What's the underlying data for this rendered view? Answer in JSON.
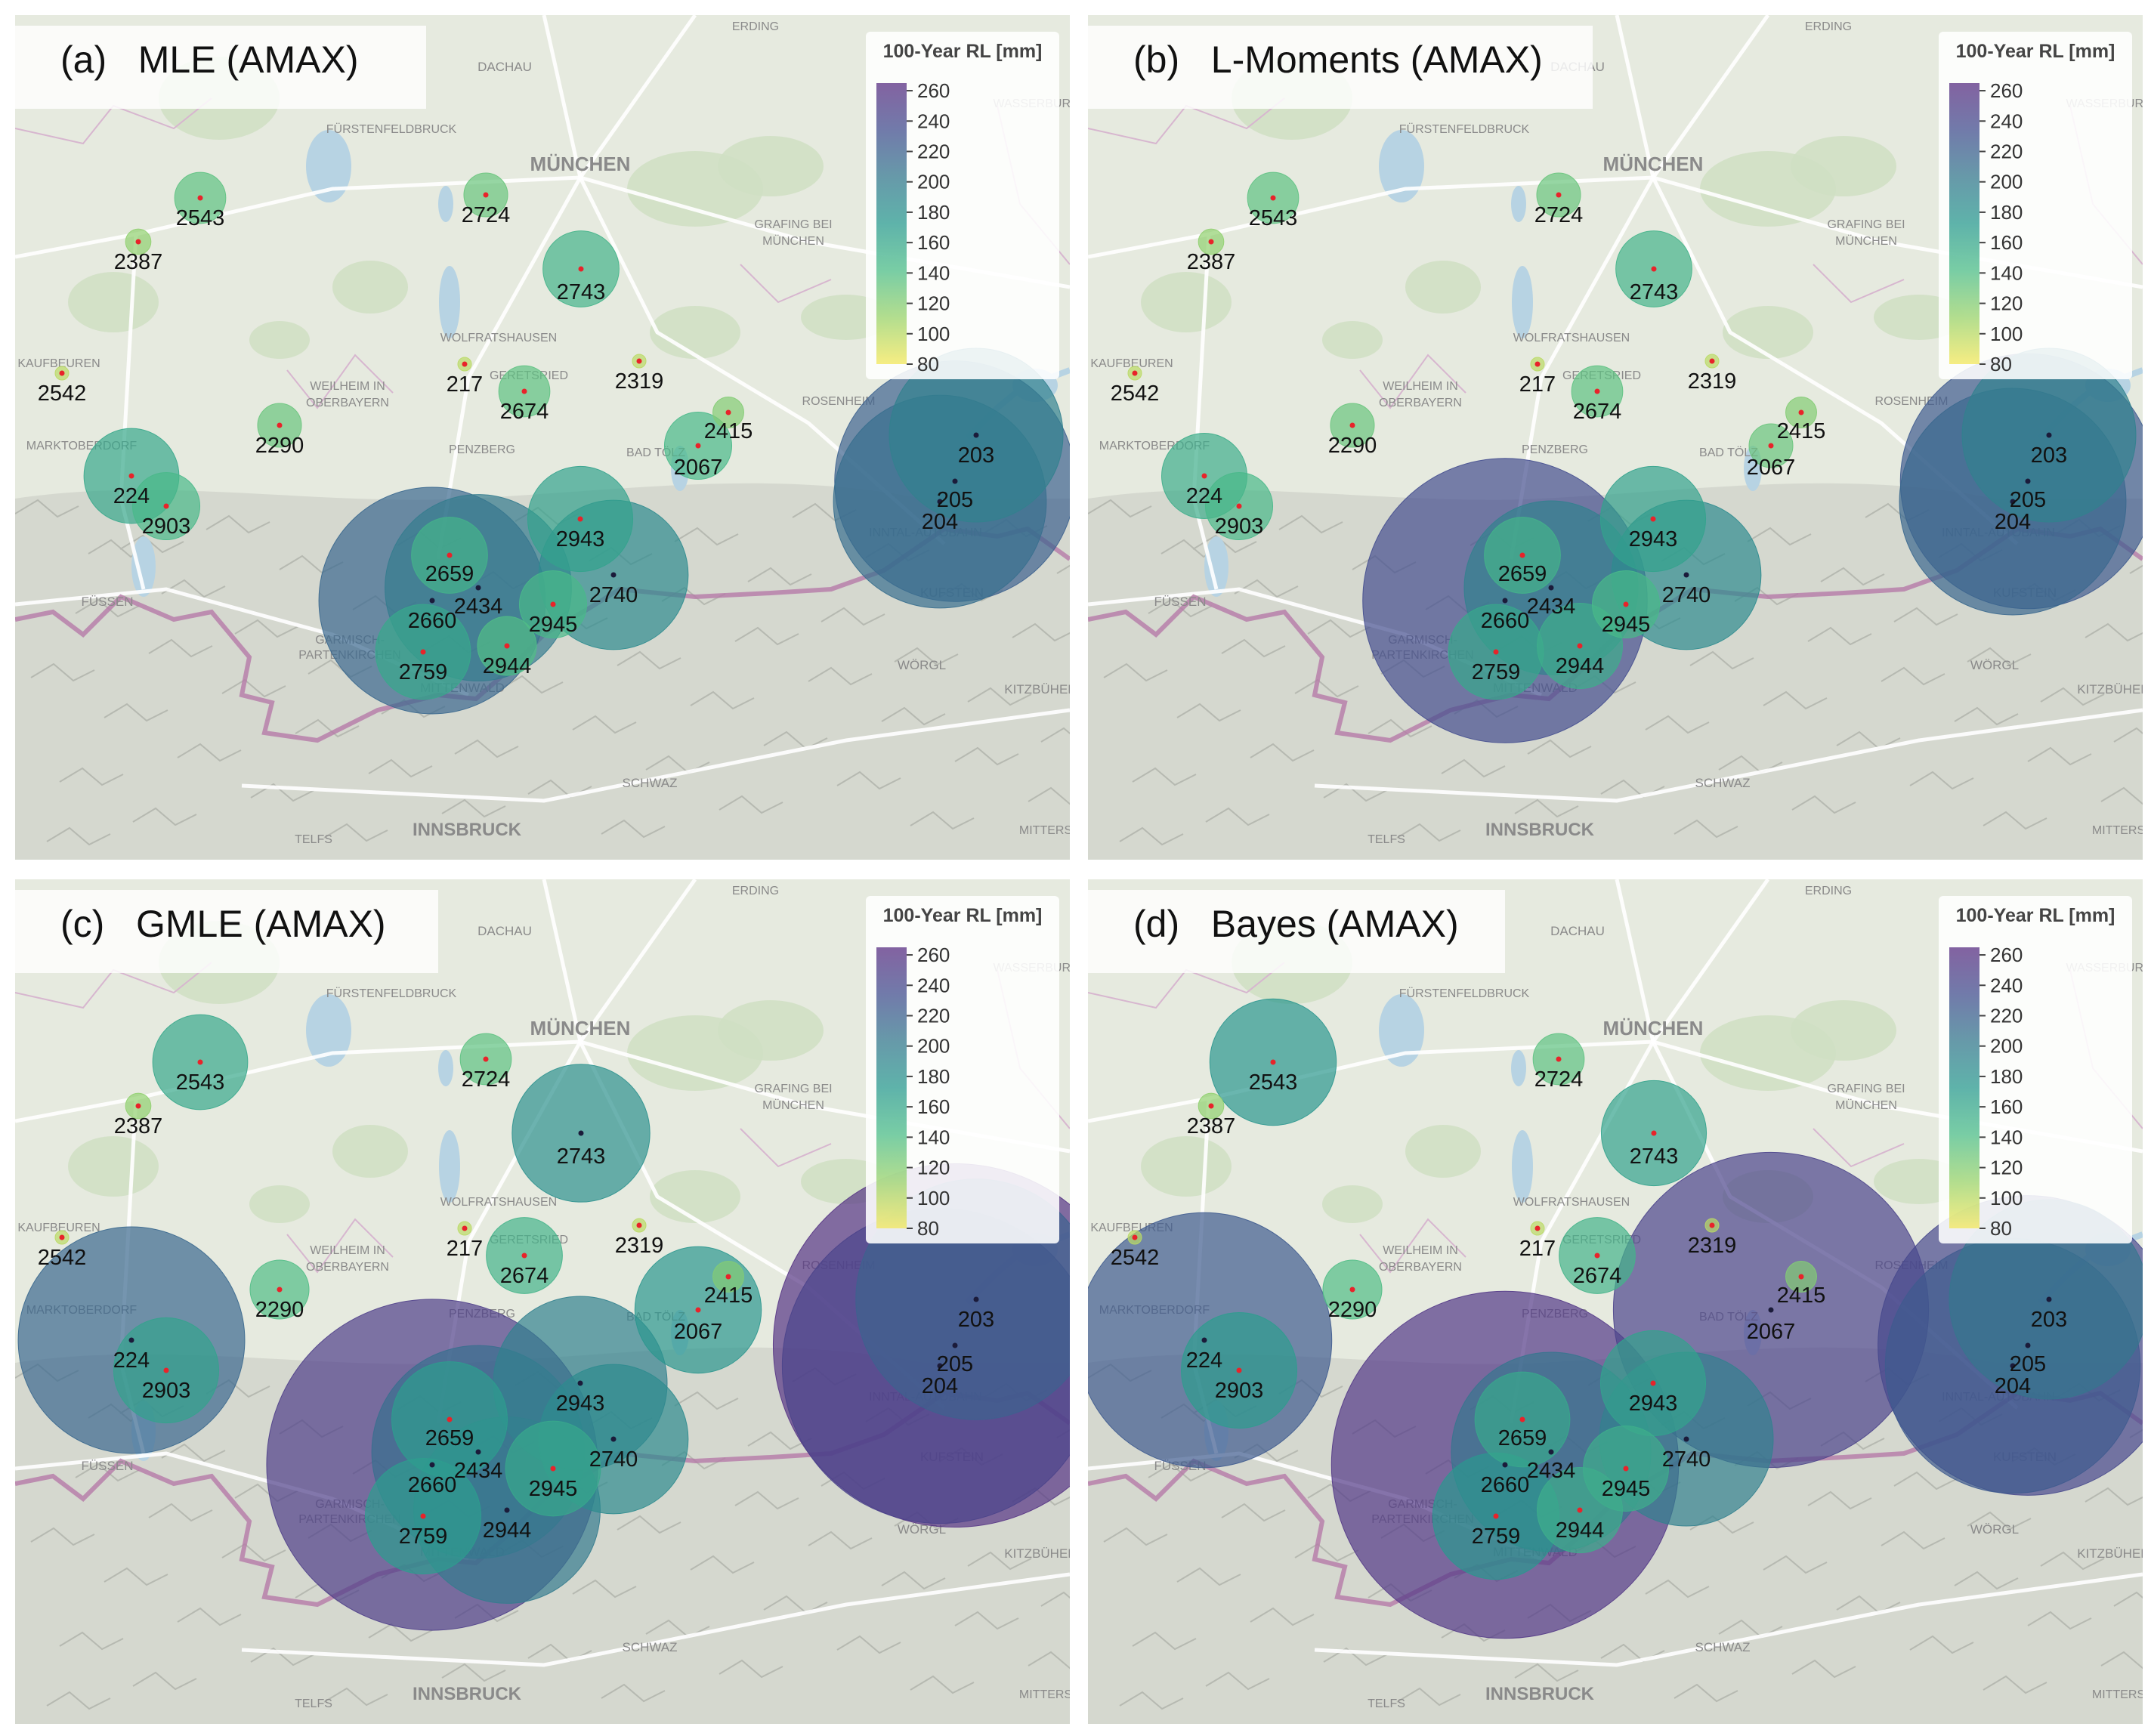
{
  "legend": {
    "title": "100-Year RL [mm]",
    "ticks": [
      260,
      240,
      220,
      200,
      180,
      160,
      140,
      120,
      100,
      80
    ],
    "range": [
      80,
      265
    ]
  },
  "colors": {
    "land": "#e6eadf",
    "forest": "#cfdfc3",
    "water": "#b7d3e3",
    "relief": "#cdd0c8",
    "border": "#b57aa8",
    "road": "#ffffff",
    "marker_dot": "#e8232a",
    "colormap": [
      "#f4e85a",
      "#9ad36b",
      "#4dbd88",
      "#2a9a8f",
      "#35788e",
      "#434f8f",
      "#5a2f83"
    ]
  },
  "place_labels": [
    {
      "text": "ERDING"
    },
    {
      "text": "DACHAU"
    },
    {
      "text": "FÜRSTENFELDBRUCK"
    },
    {
      "text": "MÜNCHEN"
    },
    {
      "text": "GRAFING BEI"
    },
    {
      "text": "MÜNCHEN"
    },
    {
      "text": "WOLFRATSHAUSEN"
    },
    {
      "text": "GERETSRIED"
    },
    {
      "text": "KAUFBEUREN"
    },
    {
      "text": "WEILHEIM IN"
    },
    {
      "text": "OBERBAYERN"
    },
    {
      "text": "ROSENHEIM"
    },
    {
      "text": "MARKTOBERDORF"
    },
    {
      "text": "PENZBERG"
    },
    {
      "text": "BAD TÖLZ"
    },
    {
      "text": "INNTAL-AUTOBAHN"
    },
    {
      "text": "FÜSSEN"
    },
    {
      "text": "KUFSTEIN"
    },
    {
      "text": "GARMISCH-"
    },
    {
      "text": "PARTENKIRCHEN"
    },
    {
      "text": "WÖRGL"
    },
    {
      "text": "MITTENWALD"
    },
    {
      "text": "KITZBÜHEL"
    },
    {
      "text": "SCHWAZ"
    },
    {
      "text": "TELFS"
    },
    {
      "text": "INNSBRUCK"
    },
    {
      "text": "MITTERS"
    },
    {
      "text": "WASSERBURG"
    }
  ],
  "panels": [
    {
      "title": "(a)   MLE (AMAX)",
      "stations": [
        {
          "id": "2543",
          "rl": 135
        },
        {
          "id": "2387",
          "rl": 115
        },
        {
          "id": "2724",
          "rl": 130
        },
        {
          "id": "2743",
          "rl": 150
        },
        {
          "id": "2542",
          "rl": 100
        },
        {
          "id": "217",
          "rl": 100
        },
        {
          "id": "2674",
          "rl": 135
        },
        {
          "id": "2319",
          "rl": 100
        },
        {
          "id": "2290",
          "rl": 130
        },
        {
          "id": "2415",
          "rl": 120
        },
        {
          "id": "2067",
          "rl": 145
        },
        {
          "id": "203",
          "rl": 195
        },
        {
          "id": "224",
          "rl": 160
        },
        {
          "id": "2903",
          "rl": 145
        },
        {
          "id": "205",
          "rl": 220
        },
        {
          "id": "204",
          "rl": 210
        },
        {
          "id": "2943",
          "rl": 165
        },
        {
          "id": "2659",
          "rl": 150
        },
        {
          "id": "2740",
          "rl": 185
        },
        {
          "id": "2434",
          "rl": 200
        },
        {
          "id": "2660",
          "rl": 215
        },
        {
          "id": "2945",
          "rl": 145
        },
        {
          "id": "2944",
          "rl": 140
        },
        {
          "id": "2759",
          "rl": 160
        }
      ]
    },
    {
      "title": "(b)   L-Moments (AMAX)",
      "stations": [
        {
          "id": "2543",
          "rl": 135
        },
        {
          "id": "2387",
          "rl": 115
        },
        {
          "id": "2724",
          "rl": 130
        },
        {
          "id": "2743",
          "rl": 150
        },
        {
          "id": "2542",
          "rl": 100
        },
        {
          "id": "217",
          "rl": 100
        },
        {
          "id": "2674",
          "rl": 135
        },
        {
          "id": "2319",
          "rl": 100
        },
        {
          "id": "2290",
          "rl": 130
        },
        {
          "id": "2415",
          "rl": 120
        },
        {
          "id": "2067",
          "rl": 130
        },
        {
          "id": "203",
          "rl": 195
        },
        {
          "id": "224",
          "rl": 155
        },
        {
          "id": "2903",
          "rl": 145
        },
        {
          "id": "205",
          "rl": 225
        },
        {
          "id": "204",
          "rl": 215
        },
        {
          "id": "2943",
          "rl": 165
        },
        {
          "id": "2659",
          "rl": 150
        },
        {
          "id": "2740",
          "rl": 185
        },
        {
          "id": "2434",
          "rl": 195
        },
        {
          "id": "2660",
          "rl": 235
        },
        {
          "id": "2945",
          "rl": 145
        },
        {
          "id": "2944",
          "rl": 155
        },
        {
          "id": "2759",
          "rl": 160
        }
      ]
    },
    {
      "title": "(c)   GMLE (AMAX)",
      "stations": [
        {
          "id": "2543",
          "rl": 160
        },
        {
          "id": "2387",
          "rl": 115
        },
        {
          "id": "2724",
          "rl": 135
        },
        {
          "id": "2743",
          "rl": 180
        },
        {
          "id": "2542",
          "rl": 100
        },
        {
          "id": "217",
          "rl": 100
        },
        {
          "id": "2674",
          "rl": 150
        },
        {
          "id": "2319",
          "rl": 100
        },
        {
          "id": "2290",
          "rl": 140
        },
        {
          "id": "2415",
          "rl": 120
        },
        {
          "id": "2067",
          "rl": 175
        },
        {
          "id": "203",
          "rl": 220
        },
        {
          "id": "224",
          "rl": 215
        },
        {
          "id": "2903",
          "rl": 165
        },
        {
          "id": "205",
          "rl": 260
        },
        {
          "id": "204",
          "rl": 245
        },
        {
          "id": "2943",
          "rl": 195
        },
        {
          "id": "2659",
          "rl": 170
        },
        {
          "id": "2740",
          "rl": 185
        },
        {
          "id": "2434",
          "rl": 210
        },
        {
          "id": "2660",
          "rl": 250
        },
        {
          "id": "2945",
          "rl": 160
        },
        {
          "id": "2944",
          "rl": 200
        },
        {
          "id": "2759",
          "rl": 170
        }
      ]
    },
    {
      "title": "(d)   Bayes (AMAX)",
      "stations": [
        {
          "id": "2543",
          "rl": 175
        },
        {
          "id": "2387",
          "rl": 115
        },
        {
          "id": "2724",
          "rl": 135
        },
        {
          "id": "2743",
          "rl": 165
        },
        {
          "id": "2542",
          "rl": 100
        },
        {
          "id": "217",
          "rl": 100
        },
        {
          "id": "2674",
          "rl": 150
        },
        {
          "id": "2319",
          "rl": 100
        },
        {
          "id": "2290",
          "rl": 140
        },
        {
          "id": "2415",
          "rl": 120
        },
        {
          "id": "2067",
          "rl": 245
        },
        {
          "id": "203",
          "rl": 205
        },
        {
          "id": "224",
          "rl": 225
        },
        {
          "id": "2903",
          "rl": 170
        },
        {
          "id": "205",
          "rl": 240
        },
        {
          "id": "204",
          "rl": 225
        },
        {
          "id": "2943",
          "rl": 165
        },
        {
          "id": "2659",
          "rl": 160
        },
        {
          "id": "2740",
          "rl": 195
        },
        {
          "id": "2434",
          "rl": 205
        },
        {
          "id": "2660",
          "rl": 255
        },
        {
          "id": "2945",
          "rl": 155
        },
        {
          "id": "2944",
          "rl": 155
        },
        {
          "id": "2759",
          "rl": 175
        }
      ]
    }
  ]
}
